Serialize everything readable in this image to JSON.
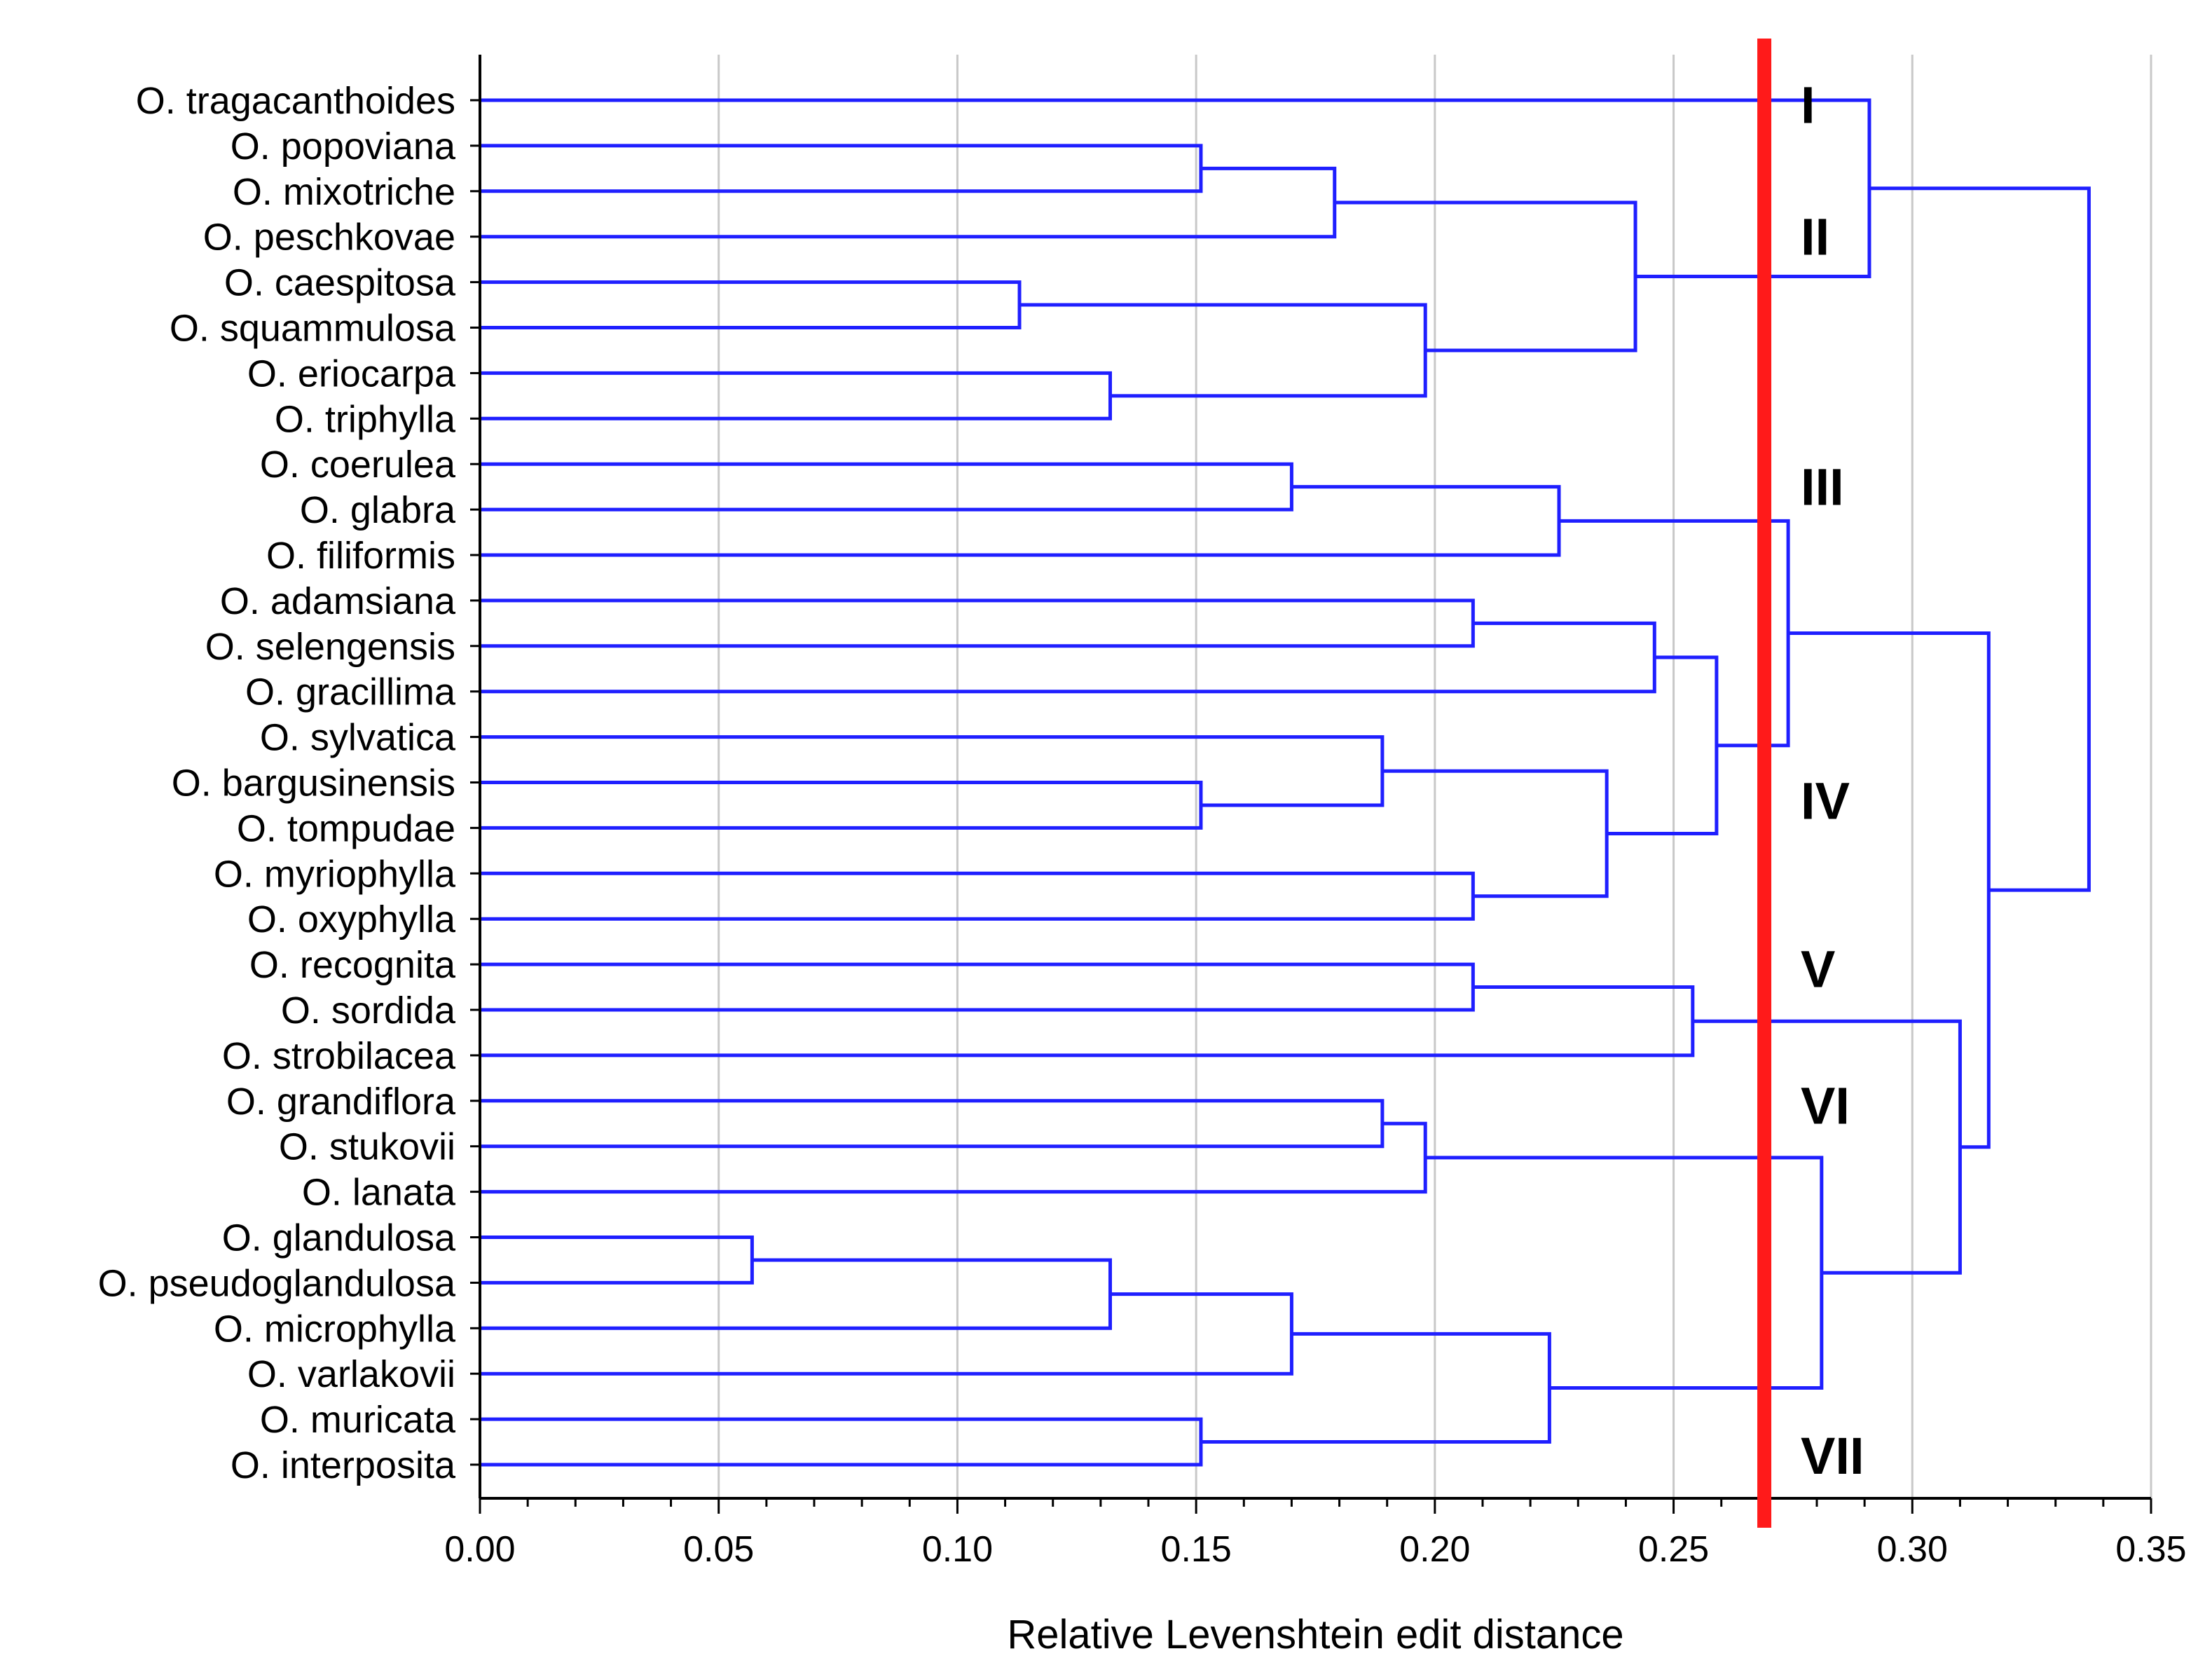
{
  "chart_data": {
    "type": "dendrogram",
    "orientation": "horizontal",
    "title": "",
    "xlabel": "Relative Levenshtein edit distance",
    "ylabel": "",
    "xlim": [
      0.0,
      0.35
    ],
    "x_ticks": [
      "0.00",
      "0.05",
      "0.10",
      "0.15",
      "0.20",
      "0.25",
      "0.30",
      "0.35"
    ],
    "grid": "vertical",
    "leaves": [
      "O. tragacanthoides",
      "O. popoviana",
      "O. mixotriche",
      "O. peschkovae",
      "O. caespitosa",
      "O. squammulosa",
      "O. eriocarpa",
      "O. triphylla",
      "O. coerulea",
      "O. glabra",
      "O. filiformis",
      "O. adamsiana",
      "O. selengensis",
      "O. gracillima",
      "O. sylvatica",
      "O. bargusinensis",
      "O. tompudae",
      "O. myriophylla",
      "O. oxyphylla",
      "O. recognita",
      "O. sordida",
      "O. strobilacea",
      "O. grandiflora",
      "O. stukovii",
      "O. lanata",
      "O. glandulosa",
      "O. pseudoglandulosa",
      "O. microphylla",
      "O. varlakovii",
      "O. muricata",
      "O. interposita"
    ],
    "merges": [
      {
        "id": "m1",
        "left": "L1",
        "right": "L2",
        "height": 0.151
      },
      {
        "id": "m2",
        "left": "m1",
        "right": "L3",
        "height": 0.179
      },
      {
        "id": "m3",
        "left": "L4",
        "right": "L5",
        "height": 0.113
      },
      {
        "id": "m4",
        "left": "L6",
        "right": "L7",
        "height": 0.132
      },
      {
        "id": "m5",
        "left": "m3",
        "right": "m4",
        "height": 0.198
      },
      {
        "id": "m6",
        "left": "m2",
        "right": "m5",
        "height": 0.242
      },
      {
        "id": "m7",
        "left": "L0",
        "right": "m6",
        "height": 0.291
      },
      {
        "id": "m8",
        "left": "L8",
        "right": "L9",
        "height": 0.17
      },
      {
        "id": "m9",
        "left": "m8",
        "right": "L10",
        "height": 0.226
      },
      {
        "id": "m10",
        "left": "L11",
        "right": "L12",
        "height": 0.208
      },
      {
        "id": "m11",
        "left": "m10",
        "right": "L13",
        "height": 0.246
      },
      {
        "id": "m12",
        "left": "L15",
        "right": "L16",
        "height": 0.151
      },
      {
        "id": "m13",
        "left": "L14",
        "right": "m12",
        "height": 0.189
      },
      {
        "id": "m14",
        "left": "L17",
        "right": "L18",
        "height": 0.208
      },
      {
        "id": "m15",
        "left": "m13",
        "right": "m14",
        "height": 0.236
      },
      {
        "id": "m16",
        "left": "m11",
        "right": "m15",
        "height": 0.259
      },
      {
        "id": "m17",
        "left": "m9",
        "right": "m16",
        "height": 0.274
      },
      {
        "id": "m18",
        "left": "L19",
        "right": "L20",
        "height": 0.208
      },
      {
        "id": "m19",
        "left": "m18",
        "right": "L21",
        "height": 0.254
      },
      {
        "id": "m20",
        "left": "L22",
        "right": "L23",
        "height": 0.189
      },
      {
        "id": "m21",
        "left": "m20",
        "right": "L24",
        "height": 0.198
      },
      {
        "id": "m22",
        "left": "L25",
        "right": "L26",
        "height": 0.057
      },
      {
        "id": "m23",
        "left": "m22",
        "right": "L27",
        "height": 0.132
      },
      {
        "id": "m24",
        "left": "m23",
        "right": "L28",
        "height": 0.17
      },
      {
        "id": "m25",
        "left": "L29",
        "right": "L30",
        "height": 0.151
      },
      {
        "id": "m26",
        "left": "m24",
        "right": "m25",
        "height": 0.224
      },
      {
        "id": "m27",
        "left": "m21",
        "right": "m26",
        "height": 0.281
      },
      {
        "id": "m28",
        "left": "m19",
        "right": "m27",
        "height": 0.31
      },
      {
        "id": "m29",
        "left": "m17",
        "right": "m28",
        "height": 0.316
      },
      {
        "id": "m30",
        "left": "m7",
        "right": "m29",
        "height": 0.337
      }
    ],
    "cut_line": {
      "value": 0.269,
      "color": "#ff1a1a"
    },
    "clusters": [
      {
        "label": "I",
        "leaf_position": 0.1
      },
      {
        "label": "II",
        "leaf_position": 3.0
      },
      {
        "label": "III",
        "leaf_position": 8.5
      },
      {
        "label": "IV",
        "leaf_position": 15.4
      },
      {
        "label": "V",
        "leaf_position": 19.1
      },
      {
        "label": "VI",
        "leaf_position": 22.1
      },
      {
        "label": "VII",
        "leaf_position": 29.8
      }
    ]
  },
  "colors": {
    "branch": "#1f1fff",
    "cut_line": "#ff1a1a",
    "axis": "#000000",
    "grid": "#c8c8c8",
    "text": "#000000"
  }
}
